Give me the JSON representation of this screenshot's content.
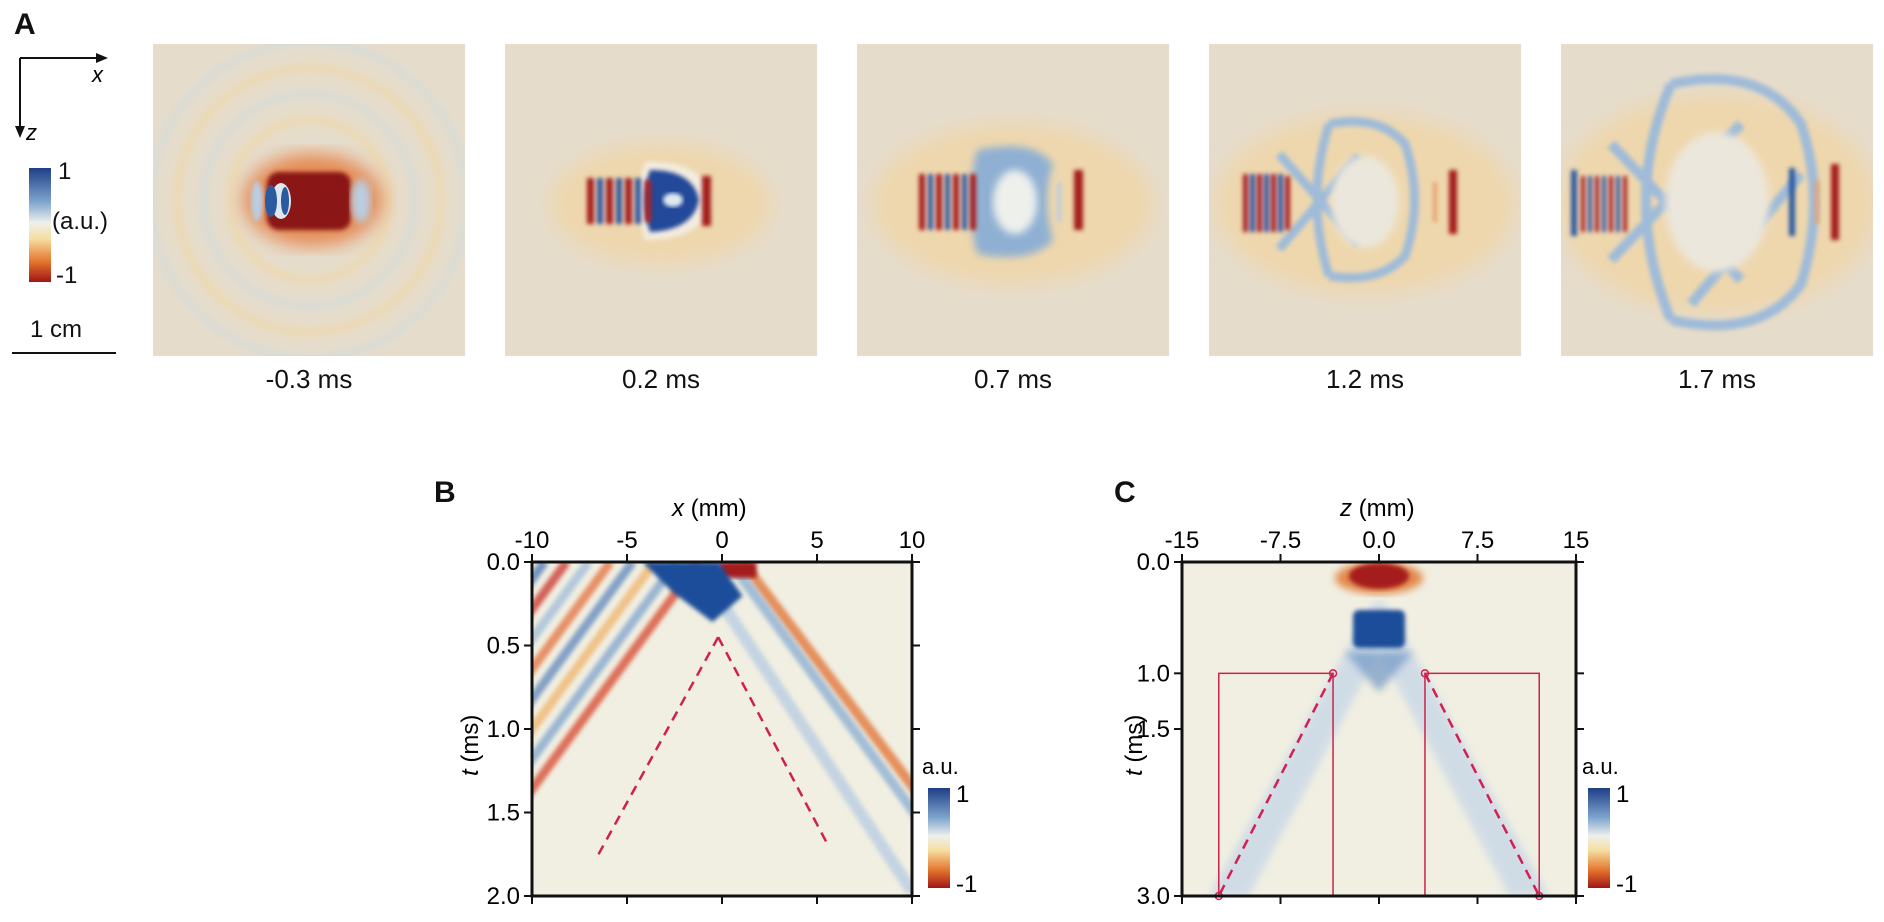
{
  "panels": {
    "a": {
      "label": "A",
      "axis_x": "x",
      "axis_z": "z",
      "colorbar": {
        "max": "1",
        "unit": "(a.u.)",
        "min": "-1"
      },
      "scale_bar": "1 cm",
      "frames": [
        "-0.3 ms",
        "0.2 ms",
        "0.7 ms",
        "1.2 ms",
        "1.7 ms"
      ]
    },
    "b": {
      "label": "B",
      "top_axis_var": "x",
      "top_axis_unit": " (mm)",
      "left_axis_var": "t",
      "left_axis_unit": " (ms)",
      "colorbar": {
        "unit": "a.u.",
        "max": "1",
        "min": "-1"
      }
    },
    "c": {
      "label": "C",
      "top_axis_var": "z",
      "top_axis_unit": " (mm)",
      "left_axis_var": "t",
      "left_axis_unit": " (ms)",
      "colorbar": {
        "unit": "a.u.",
        "max": "1",
        "min": "-1"
      }
    }
  },
  "colors": {
    "positive": "#1f4e9a",
    "negative": "#a51f1f",
    "background": "#e6dccb",
    "light": "#f3f1e6",
    "marker": "#d21f52"
  },
  "chart_data": [
    {
      "id": "B",
      "type": "heatmap",
      "xlabel": "x (mm)",
      "ylabel": "t (ms)",
      "xlim": [
        -10,
        10
      ],
      "ylim": [
        0.0,
        2.0
      ],
      "x_ticks": [
        "-10",
        "-5",
        "0",
        "5",
        "10"
      ],
      "x_tick_values": [
        -10,
        -5,
        0,
        5,
        10
      ],
      "y_ticks": [
        "0.0",
        "0.5",
        "1.0",
        "1.5",
        "2.0"
      ],
      "y_tick_values": [
        0.0,
        0.5,
        1.0,
        1.5,
        2.0
      ],
      "dashed_lines": [
        {
          "x": [
            -0.2,
            -6.5
          ],
          "t": [
            0.45,
            1.75
          ]
        },
        {
          "x": [
            -0.2,
            5.6
          ],
          "t": [
            0.45,
            1.7
          ]
        }
      ],
      "clim": [
        -1,
        1
      ]
    },
    {
      "id": "C",
      "type": "heatmap",
      "xlabel": "z (mm)",
      "ylabel": "t (ms)",
      "xlim": [
        -15,
        15
      ],
      "ylim": [
        0.0,
        3.0
      ],
      "x_ticks": [
        "-15",
        "-7.5",
        "0.0",
        "7.5",
        "15"
      ],
      "x_tick_values": [
        -15,
        -7.5,
        0,
        7.5,
        15
      ],
      "y_ticks": [
        "0.0",
        "1.0",
        "1.5",
        "3.0"
      ],
      "y_tick_values": [
        0.0,
        1.0,
        1.5,
        3.0
      ],
      "dashed_lines": [
        {
          "x": [
            -3.5,
            -12.2
          ],
          "t": [
            1.0,
            3.0
          ]
        },
        {
          "x": [
            3.5,
            12.2
          ],
          "t": [
            1.0,
            3.0
          ]
        }
      ],
      "boxes": [
        {
          "x": [
            -12.2,
            -3.5
          ],
          "t": [
            1.0,
            3.0
          ]
        },
        {
          "x": [
            3.5,
            12.2
          ],
          "t": [
            1.0,
            3.0
          ]
        }
      ],
      "clim": [
        -1,
        1
      ]
    }
  ]
}
